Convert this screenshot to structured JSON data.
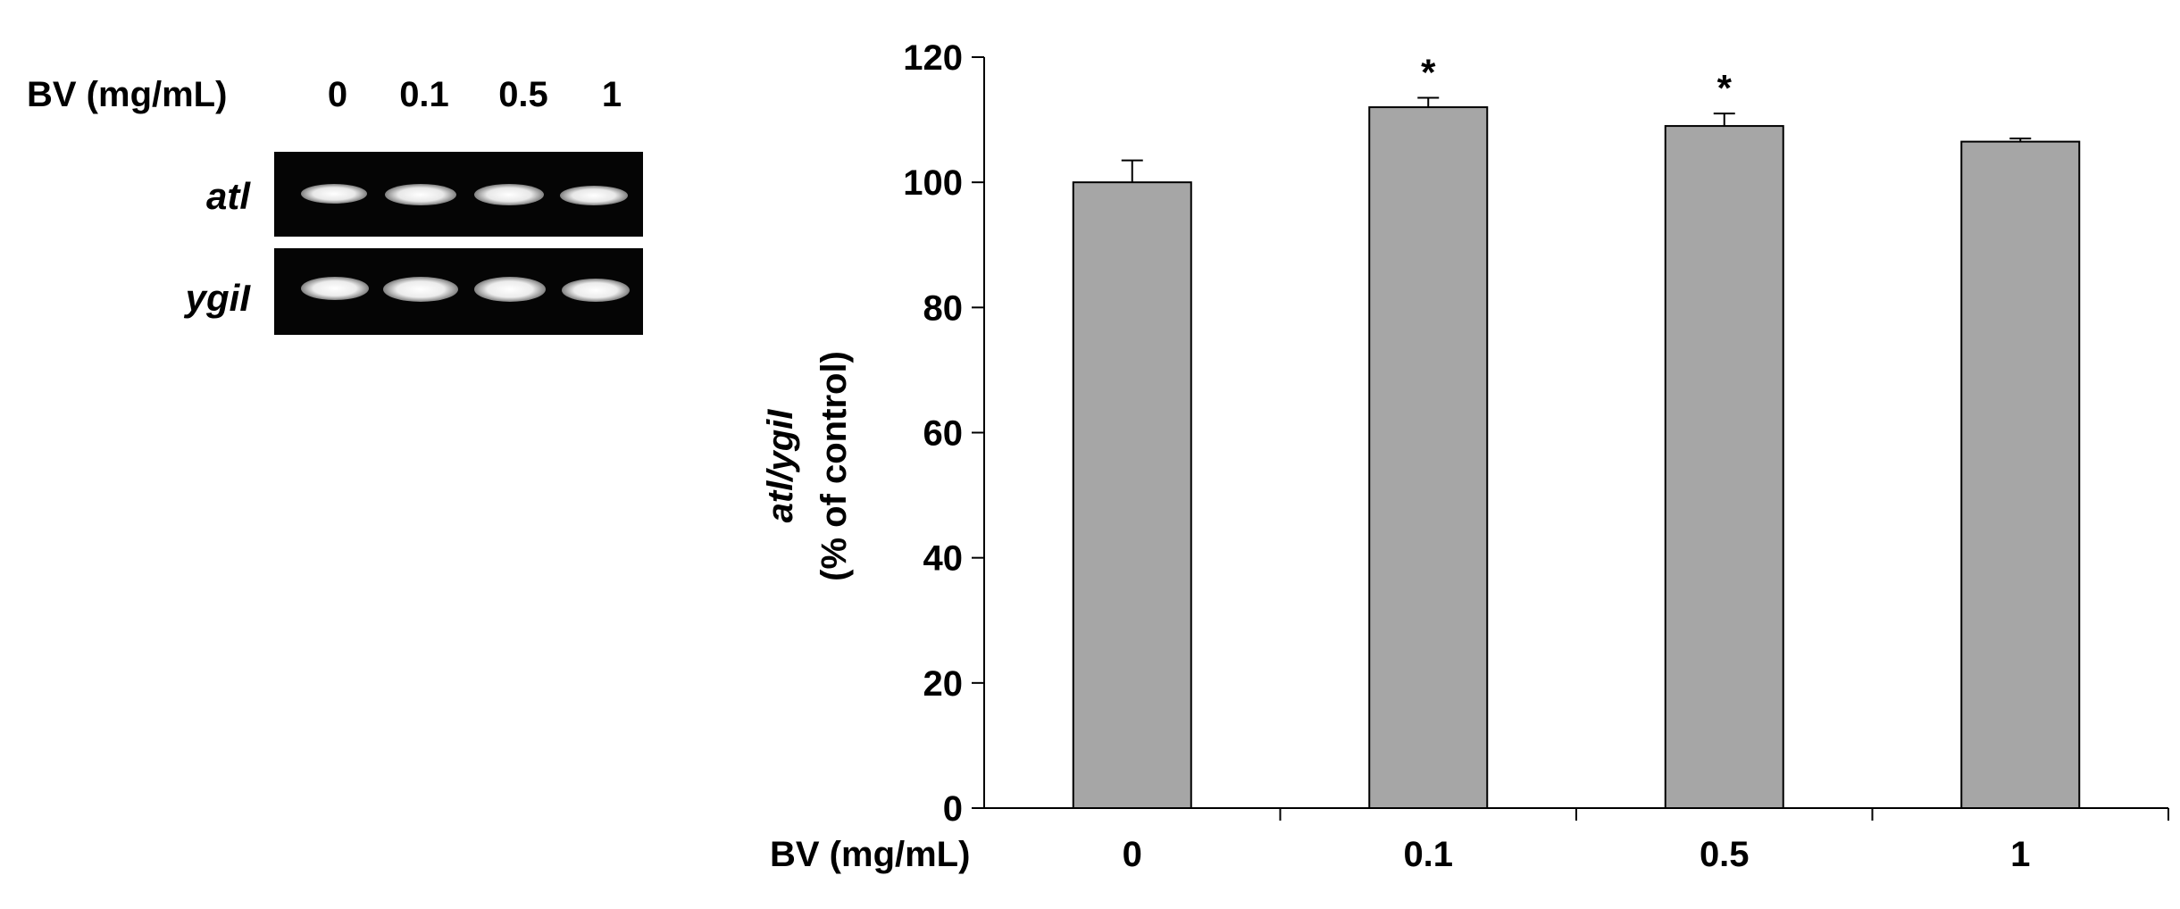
{
  "gel": {
    "treatment_label": "BV (mg/mL)",
    "lanes": [
      "0",
      "0.1",
      "0.5",
      "1"
    ],
    "rows": [
      {
        "gene": "atl"
      },
      {
        "gene": "ygiI"
      }
    ]
  },
  "chart_data": {
    "type": "bar",
    "title": "",
    "xlabel": "BV (mg/mL)",
    "ylabel_gene_ratio": "atl/ygiI",
    "ylabel_unit": "(% of control)",
    "categories": [
      "0",
      "0.1",
      "0.5",
      "1"
    ],
    "values": [
      100,
      112,
      109,
      106.5
    ],
    "errors": [
      3.5,
      1.5,
      2,
      0.5
    ],
    "significance": [
      "",
      "*",
      "*",
      ""
    ],
    "ylim": [
      0,
      120
    ],
    "yticks": [
      "0",
      "20",
      "40",
      "60",
      "80",
      "100",
      "120"
    ],
    "grid": false,
    "bar_color": "#a6a6a6",
    "edge_color": "#000000"
  }
}
